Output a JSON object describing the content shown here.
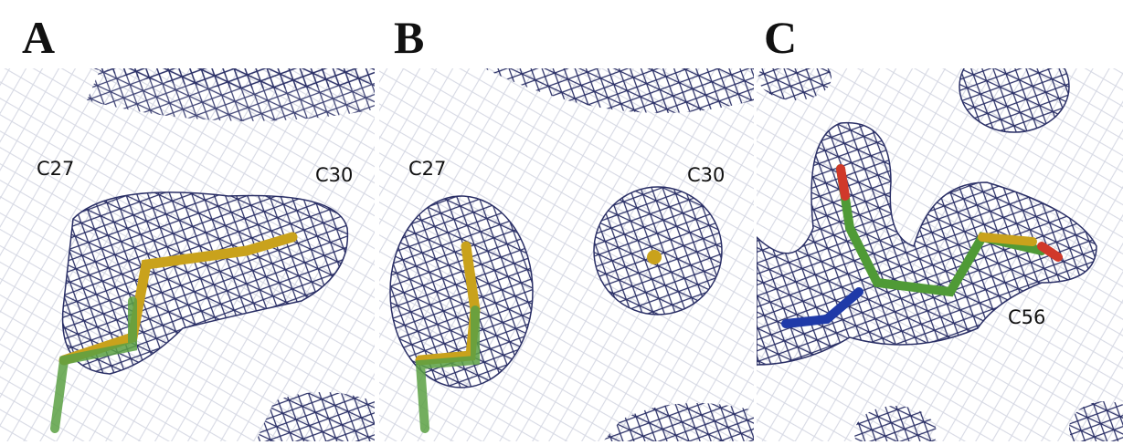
{
  "panels": [
    {
      "letter": "A",
      "labels": [
        "C27",
        "C30"
      ]
    },
    {
      "letter": "B",
      "labels": [
        "C27",
        "C30"
      ]
    },
    {
      "letter": "C",
      "labels": [
        "C56"
      ]
    }
  ]
}
